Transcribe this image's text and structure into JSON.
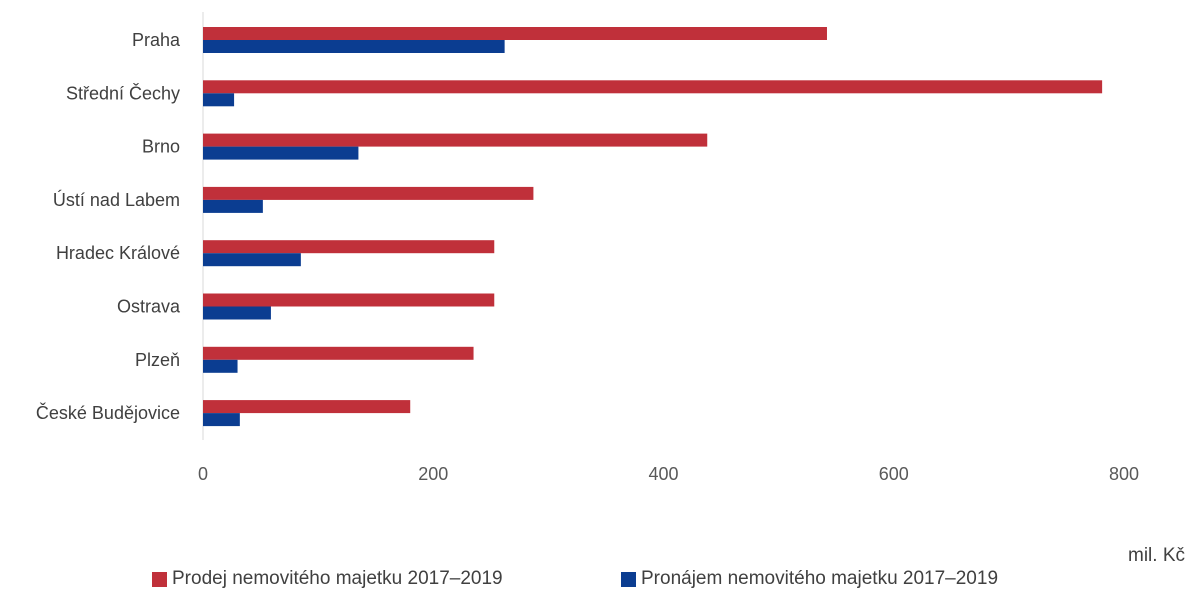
{
  "chart_data": {
    "type": "bar",
    "orientation": "horizontal",
    "categories": [
      "Praha",
      "Střední Čechy",
      "Brno",
      "Ústí nad Labem",
      "Hradec Králové",
      "Ostrava",
      "Plzeň",
      "České Budějovice"
    ],
    "series": [
      {
        "name": "Prodej nemovitého majetku 2017–2019",
        "color": "#c0303a",
        "values": [
          542,
          781,
          438,
          287,
          253,
          253,
          235,
          180
        ]
      },
      {
        "name": "Pronájem nemovitého majetku 2017–2019",
        "color": "#0b3d91",
        "values": [
          262,
          27,
          135,
          52,
          85,
          59,
          30,
          32
        ]
      }
    ],
    "xticks": [
      "0",
      "200",
      "400",
      "600",
      "800"
    ],
    "xlim": [
      0,
      800
    ],
    "unit": "mil. Kč",
    "grid": false,
    "legend_position": "bottom"
  }
}
